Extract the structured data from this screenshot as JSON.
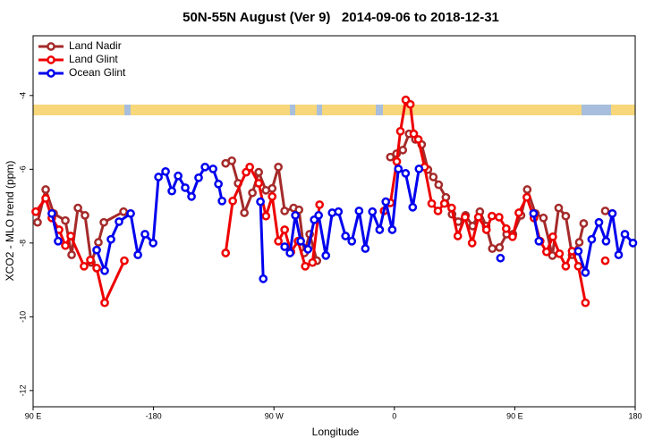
{
  "chart_data": {
    "type": "line",
    "title": "50N-55N August (Ver 9)   2014-09-06 to 2018-12-31",
    "x_label": "Longitude",
    "y_label": "XCO2 - MLO trend (ppm)",
    "xlim": [
      -270,
      180
    ],
    "ylim": [
      -12.44,
      -2.38
    ],
    "xticks": [
      {
        "value": -270,
        "label": "90 E"
      },
      -180,
      {
        "value": -90,
        "label": "90 W"
      },
      0,
      {
        "value": 90,
        "label": "90 E"
      },
      180
    ],
    "yticks": [
      -4,
      -6,
      -8,
      -10,
      -12
    ],
    "legend": "top-left",
    "series": [
      {
        "name": "Land Nadir",
        "color": "#a52a2a",
        "x": [
          -266.7,
          -260.6,
          -254.6,
          -245.9,
          -241.2,
          -236.5,
          -231.2,
          -226.5,
          -221.2,
          -217.1,
          -202.4,
          null,
          -126.1,
          -121.5,
          -116.8,
          -112.1,
          -106.1,
          -101.4,
          -96.0,
          -91.3,
          -86.7,
          -82.0,
          -75.3,
          -71.3,
          -67.3,
          -63.3,
          -57.9,
          null,
          -3.0,
          1.6,
          6.3,
          11.0,
          15.7,
          20.4,
          25.1,
          29.1,
          33.1,
          38.5,
          43.1,
          47.8,
          53.2,
          58.5,
          63.9,
          68.6,
          73.2,
          78.6,
          83.9,
          88.6,
          94.7,
          99.3,
          105.4,
          111.4,
          118.1,
          122.8,
          128.1,
          132.8,
          138.2,
          141.5,
          null,
          157.6,
          162.9
        ],
        "values": [
          -7.44,
          -6.55,
          -7.2,
          -7.39,
          -8.32,
          -7.05,
          -7.25,
          -8.53,
          -7.98,
          -7.44,
          -7.15,
          null,
          -5.84,
          -5.77,
          -6.38,
          -7.18,
          -6.64,
          -6.08,
          -6.57,
          -6.52,
          -5.94,
          -7.13,
          -7.05,
          -7.1,
          -8.27,
          -7.76,
          -8.48,
          null,
          -5.67,
          -5.58,
          -5.48,
          -5.04,
          -5.19,
          -5.33,
          -6.01,
          -6.21,
          -6.42,
          -6.76,
          -7.22,
          -7.42,
          -7.25,
          -7.54,
          -7.15,
          -7.54,
          -8.15,
          -8.12,
          -7.76,
          -7.76,
          -7.25,
          -6.55,
          -7.2,
          -7.32,
          -8.34,
          -7.05,
          -7.27,
          -8.32,
          -7.98,
          -7.47,
          null,
          -7.13,
          -7.2
        ]
      },
      {
        "name": "Land Glint",
        "color": "#ee0000",
        "x": [
          -268,
          -260.6,
          -256,
          -250.6,
          -245.9,
          -241.9,
          -231.9,
          -227.2,
          -222.5,
          -216.5,
          -201.8,
          null,
          -126.1,
          -120.8,
          -110.8,
          -108.1,
          -101.4,
          -96.0,
          -91.3,
          -86.7,
          -82.0,
          -77.3,
          -72.0,
          -66.6,
          -61.2,
          -55.9,
          null,
          -7.7,
          -2.9,
          1.8,
          4.5,
          8.5,
          11.9,
          14.5,
          17.9,
          22.6,
          27.9,
          32.6,
          37.4,
          42.8,
          47.4,
          52.8,
          58.1,
          62.8,
          68.8,
          72.9,
          78.3,
          83.6,
          88.3,
          93.0,
          99.0,
          104.3,
          109.0,
          113.7,
          118.4,
          123.4,
          128.1,
          132.8,
          137.5,
          142.8,
          null,
          157.6
        ],
        "values": [
          -7.15,
          -6.79,
          -7.32,
          -7.64,
          -8.07,
          -7.81,
          -8.63,
          -8.46,
          -8.68,
          -9.62,
          -8.48,
          null,
          -8.27,
          -6.86,
          -6.08,
          -5.94,
          -6.38,
          -7.27,
          -6.74,
          -7.95,
          -7.64,
          -8.24,
          -7.95,
          -8.63,
          -8.53,
          -6.96,
          null,
          -7.13,
          -6.91,
          -5.79,
          -4.97,
          -4.12,
          -4.24,
          -5.04,
          -5.19,
          -5.94,
          -6.93,
          -7.13,
          -6.93,
          -7.05,
          -7.81,
          -7.3,
          -8.0,
          -7.3,
          -7.64,
          -7.27,
          -7.3,
          -7.61,
          -7.83,
          -7.18,
          -6.76,
          -7.32,
          -7.95,
          -8.24,
          -7.83,
          -8.29,
          -8.63,
          -8.22,
          -8.63,
          -9.62,
          null,
          -8.48
        ]
      },
      {
        "name": "Ocean Glint",
        "color": "#0000ee",
        "x": [
          -256,
          -251.3,
          null,
          -222.5,
          -216.5,
          -211.8,
          -205.8,
          -197.1,
          -191.7,
          -186.4,
          -180.3,
          -176.3,
          -171.0,
          -166.3,
          -161.6,
          -156.3,
          -151.6,
          -146.3,
          -141.5,
          -135.5,
          -131.5,
          -128.8,
          null,
          -100.1,
          -98.0,
          null,
          -82.0,
          -78.0,
          -74.0,
          -70.0,
          -64.6,
          -59.9,
          -56.6,
          -51.2,
          -46.5,
          -41.8,
          -36.5,
          -31.8,
          -26.4,
          -21.7,
          -16.4,
          -11.0,
          -6.4,
          -1.6,
          3.0,
          8.4,
          13.7,
          18.4,
          null,
          79.3,
          null,
          104.0,
          108.0,
          null,
          137.5,
          142.8,
          147.5,
          152.9,
          158.2,
          162.9,
          167.6,
          172.3,
          178.3
        ],
        "values": [
          -7.2,
          -7.95,
          null,
          -8.19,
          -8.75,
          -7.9,
          -7.42,
          -7.2,
          -8.32,
          -7.76,
          -8.0,
          -6.21,
          -6.06,
          -6.59,
          -6.18,
          -6.5,
          -6.74,
          -6.23,
          -5.94,
          -5.99,
          -6.4,
          -6.86,
          null,
          -6.88,
          -8.97,
          null,
          -8.1,
          -8.27,
          -7.25,
          -7.95,
          -8.17,
          -7.37,
          -7.25,
          -8.34,
          -7.18,
          -7.15,
          -7.81,
          -7.95,
          -7.13,
          -8.15,
          -7.15,
          -7.64,
          -6.88,
          -7.64,
          -5.99,
          -6.11,
          -7.03,
          -5.99,
          null,
          -8.41,
          null,
          -7.2,
          -7.95,
          null,
          -8.22,
          -8.8,
          -7.9,
          -7.44,
          -7.95,
          -7.2,
          -8.32,
          -7.76,
          -8.0
        ]
      }
    ]
  }
}
